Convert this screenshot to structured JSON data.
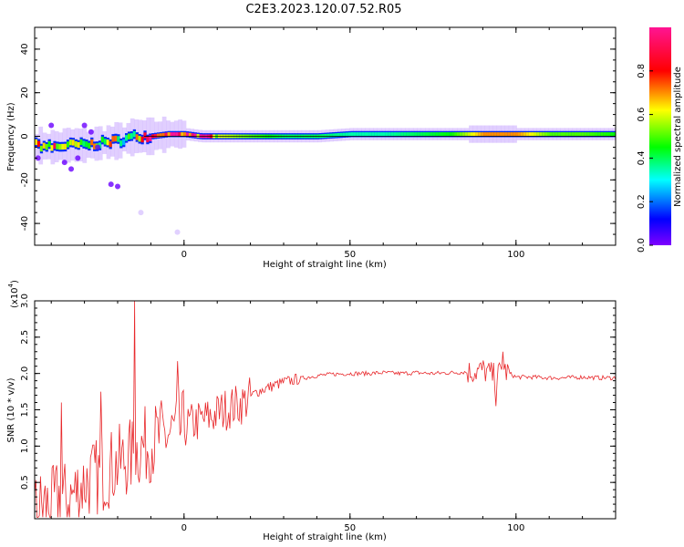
{
  "title": "C2E3.2023.120.07.52.R05",
  "chart_data": [
    {
      "type": "heatmap",
      "xlabel": "Height of straight line (km)",
      "ylabel": "Frequency (Hz)",
      "xlim": [
        -45,
        130
      ],
      "ylim": [
        -50,
        50
      ],
      "xticks": [
        "0",
        "50",
        "100"
      ],
      "yticks": [
        "-40",
        "-20",
        "0",
        "20",
        "40"
      ],
      "colorbar": {
        "label": "Normalized spectral amplitude",
        "range": [
          0.0,
          1.0
        ],
        "ticks": [
          "0.0",
          "0.2",
          "0.4",
          "0.6",
          "0.8"
        ],
        "colormap": [
          "#7f00ff",
          "#0000ff",
          "#00ffff",
          "#00ff00",
          "#ffff00",
          "#ff0000",
          "#ff1493"
        ]
      },
      "ridge": {
        "x": [
          -45,
          -40,
          -35,
          -30,
          -25,
          -20,
          -15,
          -10,
          -5,
          0,
          5,
          10,
          20,
          30,
          40,
          50,
          60,
          70,
          80,
          90,
          100,
          110,
          120,
          130
        ],
        "freq": [
          -4,
          -5,
          -4,
          -4,
          -3,
          -2,
          0,
          0,
          1,
          1,
          0,
          0,
          0,
          0,
          0,
          1,
          1,
          1,
          1,
          1,
          1,
          1,
          1,
          1
        ],
        "intensity": [
          0.6,
          0.7,
          0.6,
          0.5,
          0.6,
          0.5,
          0.5,
          0.8,
          0.9,
          0.9,
          0.8,
          0.6,
          0.5,
          0.4,
          0.4,
          0.35,
          0.35,
          0.4,
          0.45,
          0.7,
          0.7,
          0.5,
          0.5,
          0.45
        ]
      }
    },
    {
      "type": "line",
      "xlabel": "Height of straight line (km)",
      "ylabel": "SNR (10 * v/v)",
      "yscale_label": "(x10",
      "yscale_exp": "4",
      "xlim": [
        -45,
        130
      ],
      "ylim": [
        0,
        3.0
      ],
      "xticks": [
        "0",
        "50",
        "100"
      ],
      "yticks": [
        "0.5",
        "1.0",
        "1.5",
        "2.0",
        "2.5",
        "3.0"
      ],
      "series": [
        {
          "color": "#e8282b",
          "x": [
            -45,
            -42,
            -40,
            -38,
            -35,
            -32,
            -30,
            -28,
            -25,
            -22,
            -20,
            -18,
            -16,
            -15,
            -14,
            -12,
            -10,
            -8,
            -5,
            -3,
            -1,
            0,
            2,
            5,
            8,
            10,
            12,
            15,
            18,
            20,
            22,
            25,
            28,
            30,
            35,
            40,
            45,
            50,
            55,
            60,
            65,
            70,
            75,
            80,
            85,
            88,
            90,
            92,
            94,
            96,
            98,
            100,
            105,
            110,
            115,
            120,
            125,
            130
          ],
          "y": [
            0.1,
            0.2,
            0.15,
            0.3,
            0.25,
            0.4,
            0.5,
            0.55,
            0.6,
            0.7,
            0.75,
            0.8,
            0.85,
            0.9,
            0.95,
            1.0,
            1.05,
            1.1,
            1.15,
            1.2,
            1.22,
            1.25,
            1.3,
            1.35,
            1.4,
            1.45,
            1.5,
            1.55,
            1.6,
            1.68,
            1.75,
            1.8,
            1.85,
            1.88,
            1.93,
            1.97,
            1.99,
            2.0,
            2.0,
            2.01,
            2.0,
            2.01,
            2.0,
            2.01,
            2.02,
            2.03,
            2.05,
            2.0,
            1.95,
            2.05,
            2.0,
            1.95,
            1.95,
            1.94,
            1.94,
            1.95,
            1.94,
            1.94
          ],
          "spikes": [
            {
              "x": -37,
              "y": 1.6
            },
            {
              "x": -25,
              "y": 1.75
            },
            {
              "x": -15,
              "y": 3.0
            },
            {
              "x": -2,
              "y": 2.17
            },
            {
              "x": 96,
              "y": 2.3
            },
            {
              "x": 94,
              "y": 1.55
            }
          ]
        }
      ]
    }
  ]
}
